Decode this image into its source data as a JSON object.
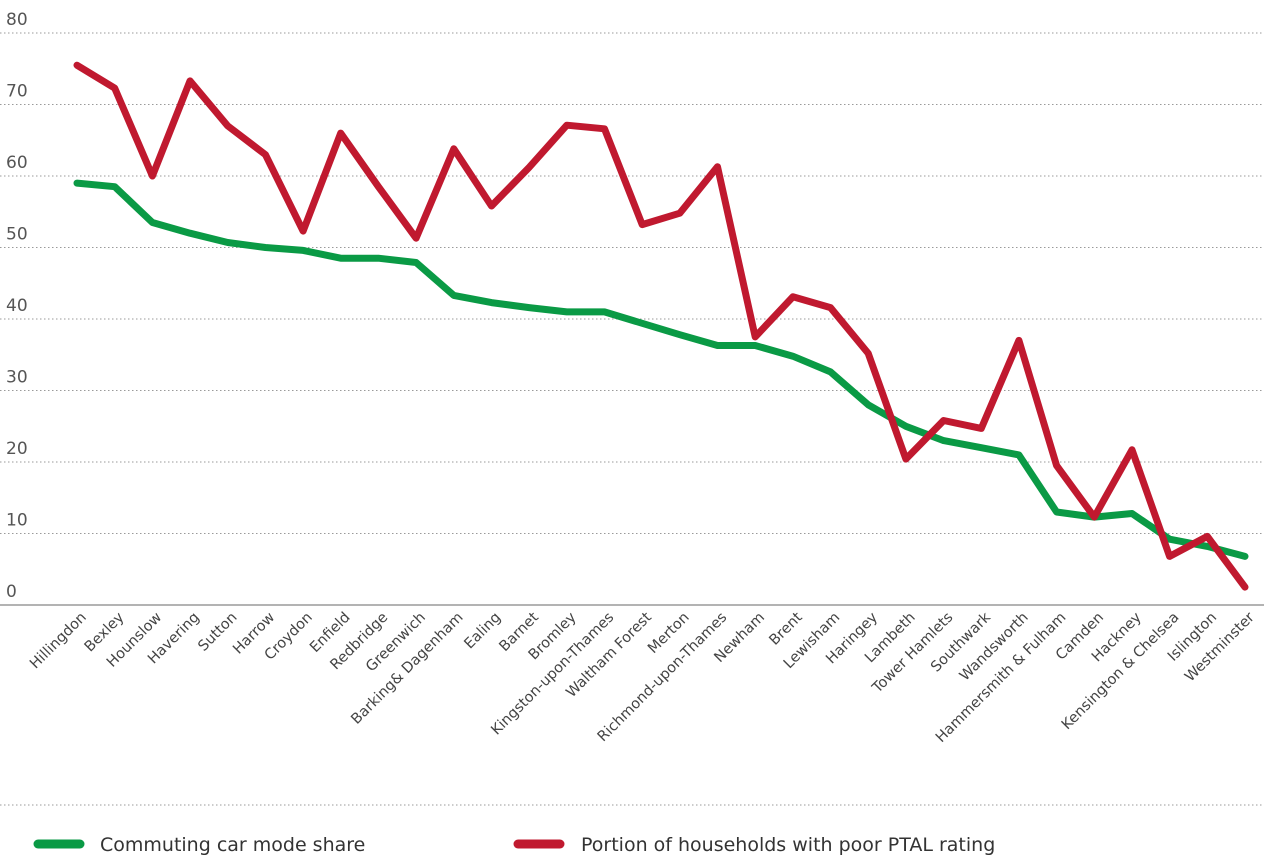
{
  "chart_data": {
    "type": "line",
    "title": "",
    "xlabel": "",
    "ylabel": "",
    "ylim": [
      0,
      80
    ],
    "yticks": [
      "0",
      "10",
      "20",
      "30",
      "40",
      "50",
      "60",
      "70",
      "80"
    ],
    "grid": true,
    "legend_position": "bottom",
    "categories": [
      "Hillingdon",
      "Bexley",
      "Hounslow",
      "Havering",
      "Sutton",
      "Harrow",
      "Croydon",
      "Enfield",
      "Redbridge",
      "Greenwich",
      "Barking& Dagenham",
      "Ealing",
      "Barnet",
      "Bromley",
      "Kingston-upon-Thames",
      "Waltham Forest",
      "Merton",
      "Richmond-upon-Thames",
      "Newham",
      "Brent",
      "Lewisham",
      "Haringey",
      "Lambeth",
      "Tower Hamlets",
      "Southwark",
      "Wandsworth",
      "Hammersmith & Fulham",
      "Camden",
      "Hackney",
      "Kensington & Chelsea",
      "Islington",
      "Westminster"
    ],
    "series": [
      {
        "name": "Commuting car mode share",
        "color": "#0a9a45",
        "values": [
          59,
          58.5,
          53.5,
          52,
          50.7,
          50,
          49.6,
          48.5,
          48.5,
          47.9,
          43.3,
          42.3,
          41.6,
          41,
          41,
          39.4,
          37.8,
          36.3,
          36.3,
          34.8,
          32.6,
          28,
          25,
          23,
          22,
          21,
          13,
          12.3,
          12.8,
          9.2,
          8.2,
          6.8
        ]
      },
      {
        "name": "Portion of households with poor PTAL rating",
        "color": "#c0192f",
        "values": [
          75.5,
          72.3,
          60,
          73.3,
          67,
          63,
          52.3,
          66,
          58.5,
          51.3,
          63.8,
          55.8,
          61.2,
          67.1,
          66.6,
          53.2,
          54.8,
          61.3,
          37.5,
          43.1,
          41.6,
          35.2,
          20.4,
          25.8,
          24.7,
          37,
          19.5,
          12.3,
          21.7,
          6.8,
          9.6,
          2.5
        ]
      }
    ]
  }
}
